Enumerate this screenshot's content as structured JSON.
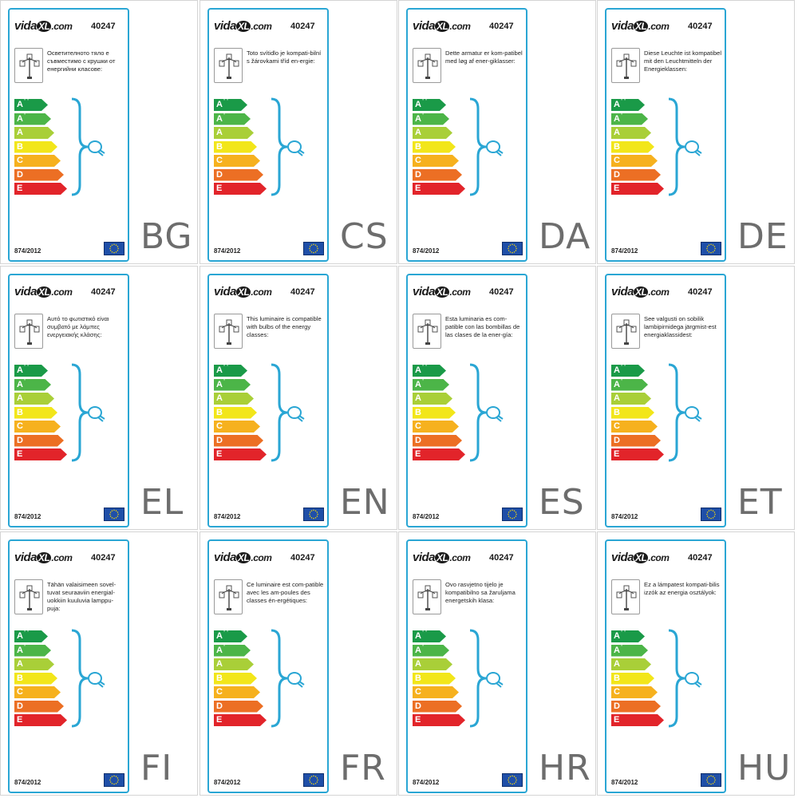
{
  "brand": {
    "prefix": "vida",
    "xl": "XL",
    "suffix": ".com"
  },
  "product_code": "40247",
  "regulation": "874/2012",
  "energy_classes": [
    {
      "main": "A",
      "sup": "++",
      "color": "#1a9a48"
    },
    {
      "main": "A",
      "sup": "+",
      "color": "#4cb548"
    },
    {
      "main": "A",
      "sup": "",
      "color": "#a9cf38"
    },
    {
      "main": "B",
      "sup": "",
      "color": "#f2e61a"
    },
    {
      "main": "C",
      "sup": "",
      "color": "#f6b11e"
    },
    {
      "main": "D",
      "sup": "",
      "color": "#ec6f24"
    },
    {
      "main": "E",
      "sup": "",
      "color": "#e2242a"
    }
  ],
  "labels": [
    {
      "lang": "BG",
      "text": "Осветителното тяло е съвместимо с крушки от енергийни класове:"
    },
    {
      "lang": "CS",
      "text": "Toto svítidlo je kompati-bilní s žárovkami tříd en-ergie:"
    },
    {
      "lang": "DA",
      "text": "Dette armatur er kom-patibel med løg af ener-giklasser:"
    },
    {
      "lang": "DE",
      "text": "Diese Leuchte ist kompatibel mit den Leuchtmitteln der Energieklassen:"
    },
    {
      "lang": "EL",
      "text": "Αυτό το φωτιστικό είναι συμβατό με λάμπες ενεργειακής κλάσης:"
    },
    {
      "lang": "EN",
      "text": "This luminaire is compatible with bulbs of the energy classes:"
    },
    {
      "lang": "ES",
      "text": "Esta luminaria es com-patible con las bombillas de las clases de la ener-gía:"
    },
    {
      "lang": "ET",
      "text": "See valgusti on sobilik lambipirnidega järgmist-est energiaklassidest:"
    },
    {
      "lang": "FI",
      "text": "Tähän valaisimeen sovel-tuvat seuraaviin energial-uokkiin kuuluvia lamppu-puja:"
    },
    {
      "lang": "FR",
      "text": "Ce luminaire est com-patible avec les am-poules des classes én-ergétiques:"
    },
    {
      "lang": "HR",
      "text": "Ovo rasvjetno tijelo je kompatibilno sa žaruljama energetskih klasa:"
    },
    {
      "lang": "HU",
      "text": "Ez a lámpatest kompati-bilis izzók az energia osztályok:"
    }
  ],
  "colors": {
    "card_border": "#2aa6d4",
    "brace": "#2aa6d4",
    "eu_flag": "#1f4fa8",
    "eu_stars": "#ffdd00",
    "language_code": "#6d6d6d"
  },
  "icons": {
    "lamp": "street-lamp-icon",
    "bulb": "light-bulb-icon",
    "flag": "eu-flag-icon"
  }
}
